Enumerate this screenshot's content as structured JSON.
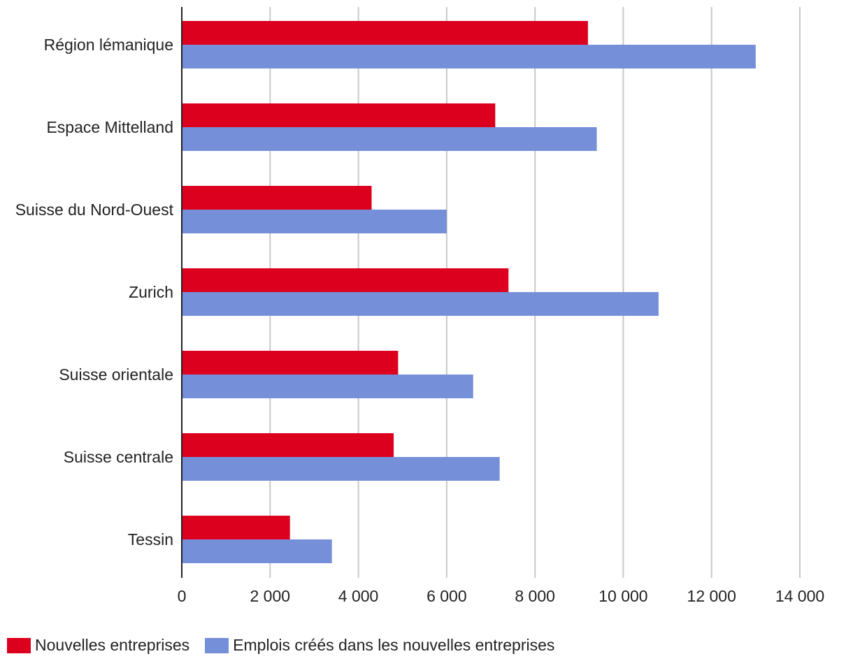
{
  "chart_data": {
    "type": "bar",
    "orientation": "horizontal",
    "categories": [
      "Région lémanique",
      "Espace Mittelland",
      "Suisse du Nord-Ouest",
      "Zurich",
      "Suisse orientale",
      "Suisse centrale",
      "Tessin"
    ],
    "series": [
      {
        "name": "Nouvelles entreprises",
        "color": "#DC001E",
        "values": [
          9200,
          7100,
          4300,
          7400,
          4900,
          4800,
          2450
        ]
      },
      {
        "name": "Emplois créés dans les nouvelles entreprises",
        "color": "#758FD9",
        "values": [
          13000,
          9400,
          6000,
          10800,
          6600,
          7200,
          3400
        ]
      }
    ],
    "xlim": [
      0,
      14000
    ],
    "xticks": [
      0,
      2000,
      4000,
      6000,
      8000,
      10000,
      12000,
      14000
    ],
    "xtick_labels": [
      "0",
      "2 000",
      "4 000",
      "6 000",
      "8 000",
      "10 000",
      "12 000",
      "14 000"
    ],
    "grid": true,
    "legend_position": "bottom-left",
    "title": "",
    "xlabel": "",
    "ylabel": ""
  }
}
